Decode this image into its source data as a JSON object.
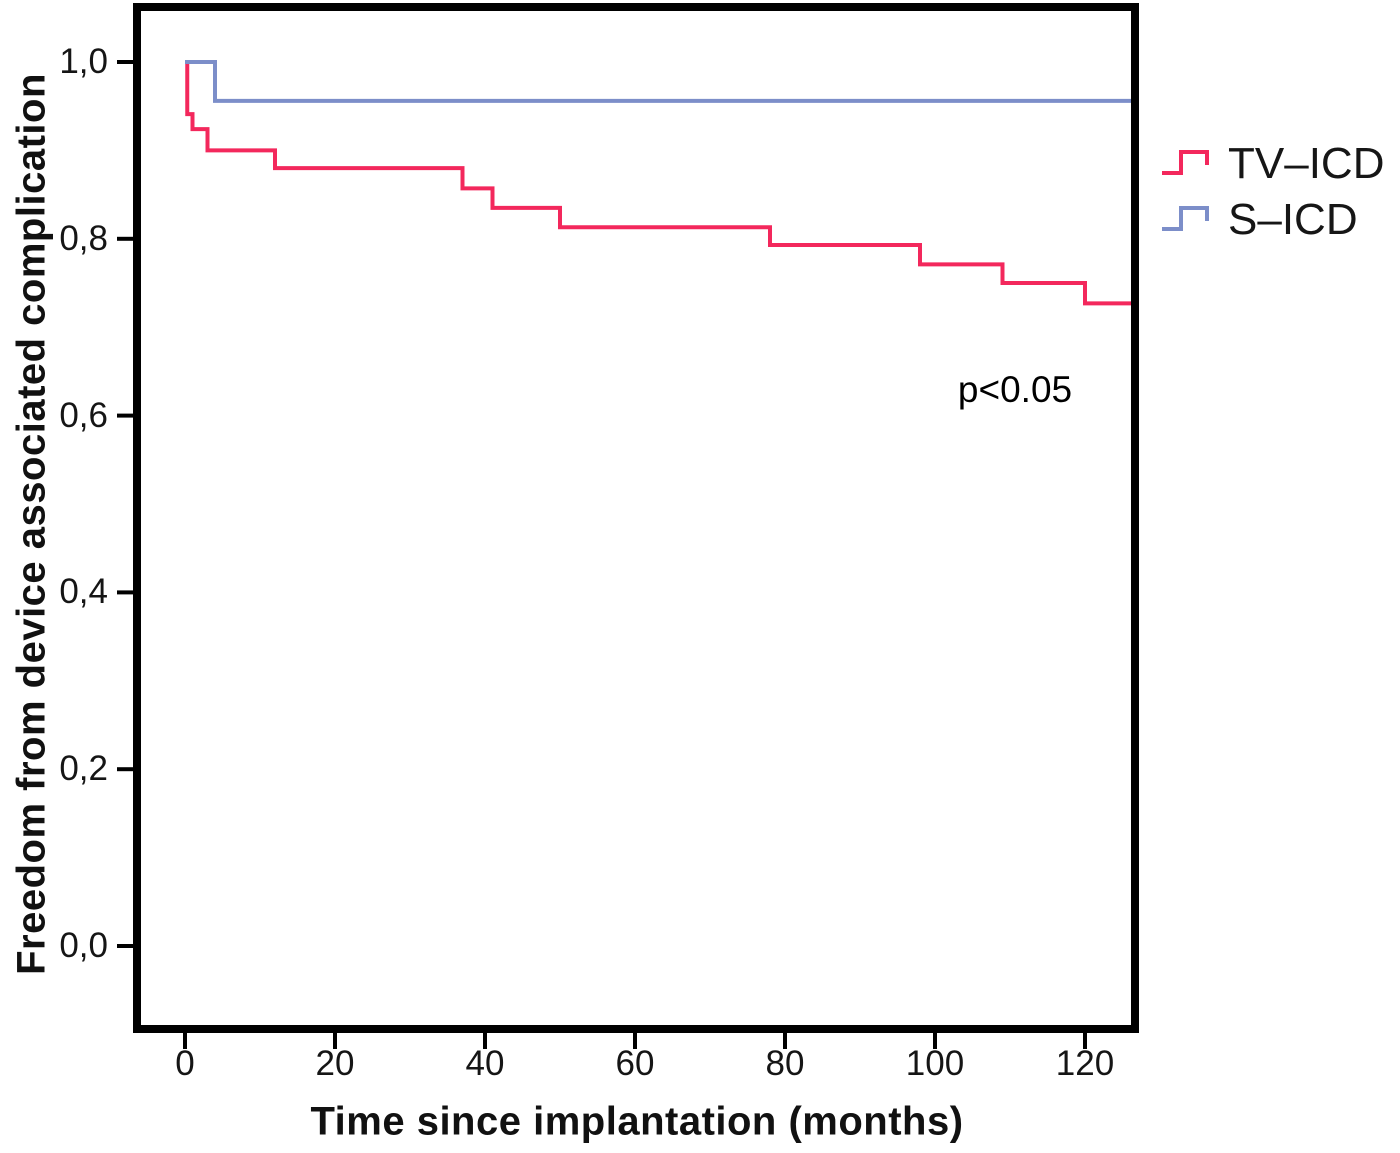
{
  "figure": {
    "background": "#ffffff",
    "frame_color": "#000000"
  },
  "chart_data": {
    "type": "line",
    "subtype": "kaplan-meier-step-function",
    "title": "",
    "xlabel": "Time since implantation (months)",
    "ylabel": "Freedom from device associated complication",
    "xlim": [
      -5.7,
      126.4
    ],
    "ylim": [
      0.0,
      1.0
    ],
    "grid": false,
    "legend_position": "right-outside",
    "x_ticks": {
      "values": [
        0,
        20,
        40,
        60,
        80,
        100,
        120
      ],
      "labels": [
        "0",
        "20",
        "40",
        "60",
        "80",
        "100",
        "120"
      ]
    },
    "y_ticks": {
      "values": [
        0.0,
        0.2,
        0.4,
        0.6,
        0.8,
        1.0
      ],
      "labels": [
        "0,0",
        "0,2",
        "0,4",
        "0,6",
        "0,8",
        "1,0"
      ]
    },
    "series": [
      {
        "name": "TV–ICD",
        "color": "#F3285C",
        "end_x": 126.4,
        "points": [
          [
            0,
            1.0
          ],
          [
            0.3,
            0.941
          ],
          [
            1,
            0.924
          ],
          [
            3,
            0.9
          ],
          [
            12,
            0.88
          ],
          [
            37,
            0.857
          ],
          [
            41,
            0.835
          ],
          [
            50,
            0.813
          ],
          [
            78,
            0.793
          ],
          [
            98,
            0.771
          ],
          [
            109,
            0.75
          ],
          [
            120,
            0.727
          ]
        ]
      },
      {
        "name": "S–ICD",
        "color": "#7C8EC9",
        "end_x": 126.4,
        "points": [
          [
            0,
            1.0
          ],
          [
            4,
            0.956
          ]
        ]
      }
    ],
    "annotation": {
      "text": "p<0.05"
    }
  }
}
